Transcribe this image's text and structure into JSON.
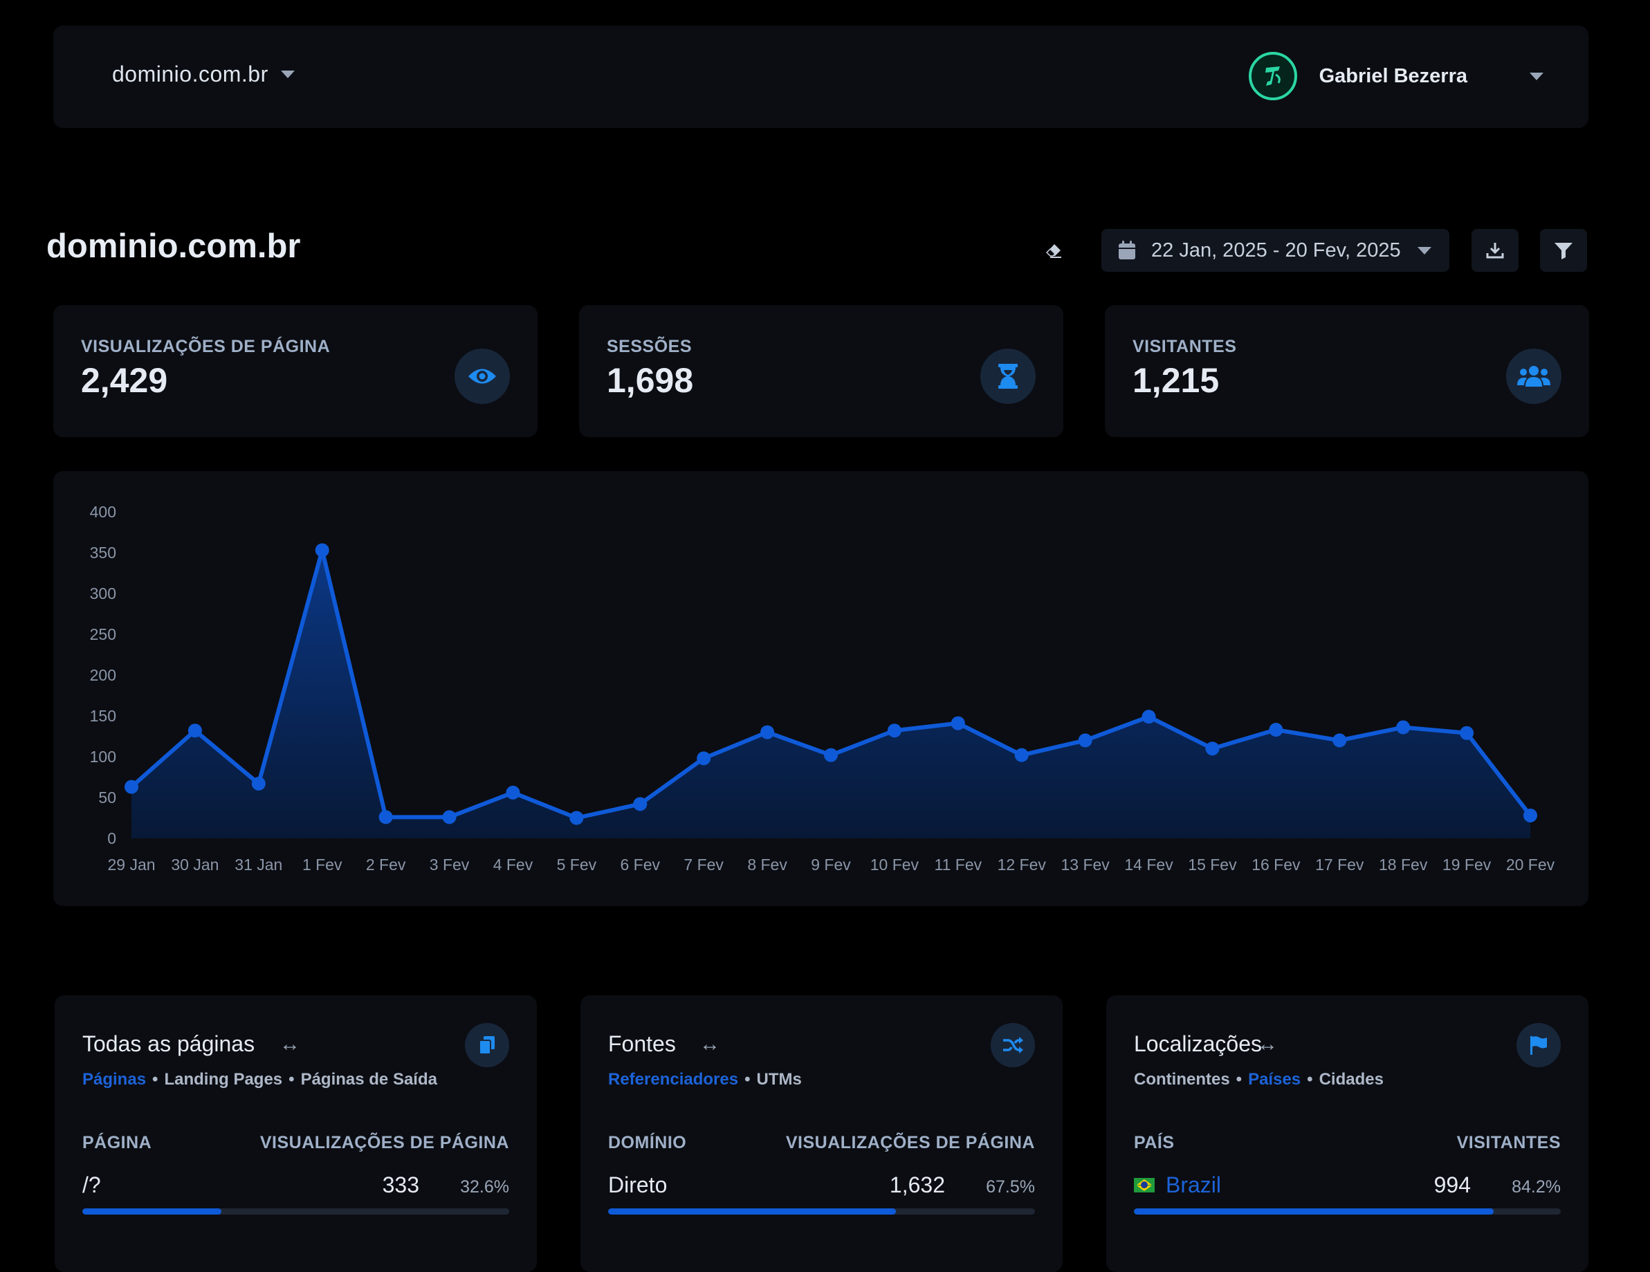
{
  "topbar": {
    "site": "dominio.com.br",
    "user_name": "Gabriel Bezerra"
  },
  "page": {
    "title": "dominio.com.br",
    "date_range": "22 Jan, 2025 - 20 Fev, 2025"
  },
  "stats": [
    {
      "label": "VISUALIZAÇÕES DE PÁGINA",
      "value": "2,429",
      "icon": "eye-icon"
    },
    {
      "label": "SESSÕES",
      "value": "1,698",
      "icon": "hourglass-icon"
    },
    {
      "label": "VISITANTES",
      "value": "1,215",
      "icon": "users-icon"
    }
  ],
  "colors": {
    "accent": "#0f5ad8",
    "link": "#1d63d8",
    "avatar_ring": "#2bd6a4"
  },
  "chart_data": {
    "type": "area",
    "x": [
      "29 Jan",
      "30 Jan",
      "31 Jan",
      "1 Fev",
      "2 Fev",
      "3 Fev",
      "4 Fev",
      "5 Fev",
      "6 Fev",
      "7 Fev",
      "8 Fev",
      "9 Fev",
      "10 Fev",
      "11 Fev",
      "12 Fev",
      "13 Fev",
      "14 Fev",
      "15 Fev",
      "16 Fev",
      "17 Fev",
      "18 Fev",
      "19 Fev",
      "20 Fev"
    ],
    "values": [
      63,
      132,
      67,
      353,
      26,
      26,
      56,
      25,
      42,
      98,
      130,
      102,
      132,
      141,
      102,
      120,
      149,
      110,
      133,
      120,
      136,
      129,
      28
    ],
    "yticks": [
      0,
      50,
      100,
      150,
      200,
      250,
      300,
      350,
      400
    ],
    "ylim": [
      0,
      400
    ],
    "grid": false,
    "legend": "none"
  },
  "panels": [
    {
      "title": "Todas as páginas",
      "icon": "copy-icon",
      "tabs": [
        {
          "label": "Páginas",
          "active": true
        },
        {
          "label": "Landing Pages",
          "active": false
        },
        {
          "label": "Páginas de Saída",
          "active": false
        }
      ],
      "col_left": "PÁGINA",
      "col_right": "VISUALIZAÇÕES DE PÁGINA",
      "row": {
        "label": "/?",
        "value": "333",
        "pct": "32.6%",
        "fraction": 0.326
      }
    },
    {
      "title": "Fontes",
      "icon": "shuffle-icon",
      "tabs": [
        {
          "label": "Referenciadores",
          "active": true
        },
        {
          "label": "UTMs",
          "active": false
        }
      ],
      "col_left": "DOMÍNIO",
      "col_right": "VISUALIZAÇÕES DE PÁGINA",
      "row": {
        "label": "Direto",
        "value": "1,632",
        "pct": "67.5%",
        "fraction": 0.675
      }
    },
    {
      "title": "Localizações",
      "icon": "flag-icon",
      "tabs": [
        {
          "label": "Continentes",
          "active": false
        },
        {
          "label": "Países",
          "active": true
        },
        {
          "label": "Cidades",
          "active": false
        }
      ],
      "col_left": "PAÍS",
      "col_right": "VISITANTES",
      "row": {
        "label": "Brazil",
        "value": "994",
        "pct": "84.2%",
        "fraction": 0.842,
        "flag": "brazil-flag-icon"
      }
    }
  ]
}
